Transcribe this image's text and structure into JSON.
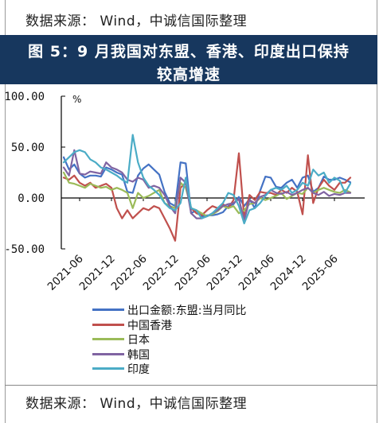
{
  "source_label": "数据来源： Wind，中诚信国际整理",
  "title_line1": "图 5：9 月我国对东盟、香港、印度出口保持",
  "title_line2": "较高增速",
  "chart_data": {
    "type": "line",
    "title": "图 5：9 月我国对东盟、香港、印度出口保持较高增速",
    "ylabel": "%",
    "ylim": [
      -50,
      100
    ],
    "yticks": [
      "-50.00",
      "0.00",
      "50.00",
      "100.00"
    ],
    "xticks": [
      "2021-06",
      "2021-12",
      "2022-06",
      "2022-12",
      "2023-06",
      "2023-12",
      "2024-06",
      "2024-12",
      "2025-06"
    ],
    "x": [
      "2021-03",
      "2021-04",
      "2021-05",
      "2021-06",
      "2021-07",
      "2021-08",
      "2021-09",
      "2021-10",
      "2021-11",
      "2021-12",
      "2022-01",
      "2022-02",
      "2022-03",
      "2022-04",
      "2022-05",
      "2022-06",
      "2022-07",
      "2022-08",
      "2022-09",
      "2022-10",
      "2022-11",
      "2022-12",
      "2023-01",
      "2023-02",
      "2023-03",
      "2023-04",
      "2023-05",
      "2023-06",
      "2023-07",
      "2023-08",
      "2023-09",
      "2023-10",
      "2023-11",
      "2023-12",
      "2024-01",
      "2024-02",
      "2024-03",
      "2024-04",
      "2024-05",
      "2024-06",
      "2024-07",
      "2024-08",
      "2024-09",
      "2024-10",
      "2024-11",
      "2024-12",
      "2025-01",
      "2025-02",
      "2025-03",
      "2025-04",
      "2025-05",
      "2025-06",
      "2025-07",
      "2025-08",
      "2025-09"
    ],
    "series": [
      {
        "name": "出口金额:东盟:当月同比",
        "color": "#4472c4",
        "values": [
          40,
          28,
          33,
          24,
          20,
          22,
          22,
          21,
          30,
          28,
          25,
          23,
          6,
          5,
          22,
          29,
          33,
          28,
          23,
          6,
          -5,
          -8,
          35,
          34,
          -15,
          -12,
          -18,
          -17,
          -17,
          -16,
          -14,
          -8,
          -6,
          1,
          -8,
          -1,
          -10,
          7,
          21,
          20,
          11,
          10,
          15,
          18,
          10,
          20,
          22,
          6,
          10,
          21,
          18,
          18,
          20,
          18,
          15.5
        ]
      },
      {
        "name": "中国香港",
        "color": "#c0504d",
        "values": [
          20,
          18,
          22,
          15,
          12,
          15,
          10,
          12,
          14,
          10,
          -10,
          -20,
          -12,
          -20,
          -15,
          -10,
          -12,
          -8,
          -10,
          -20,
          -30,
          -42,
          10,
          15,
          -10,
          -15,
          -17,
          -12,
          -8,
          -10,
          -6,
          -10,
          -2,
          44,
          -20,
          3,
          -2,
          6,
          5,
          5,
          3,
          8,
          5,
          10,
          6,
          -16,
          42,
          -5,
          10,
          18,
          12,
          8,
          15,
          15,
          20
        ]
      },
      {
        "name": "日本",
        "color": "#9bbb59",
        "values": [
          25,
          15,
          14,
          12,
          10,
          14,
          12,
          10,
          11,
          8,
          10,
          8,
          5,
          -10,
          5,
          0,
          2,
          5,
          8,
          -5,
          -8,
          -10,
          15,
          10,
          -10,
          -12,
          -15,
          -18,
          -16,
          -13,
          -8,
          -10,
          -8,
          -15,
          -12,
          -6,
          -5,
          0,
          -2,
          0,
          2,
          5,
          -1,
          2,
          5,
          4,
          10,
          5,
          8,
          10,
          8,
          6,
          5,
          8,
          5.5
        ]
      },
      {
        "name": "韩国",
        "color": "#8064a2",
        "values": [
          30,
          22,
          47,
          24,
          23,
          26,
          25,
          24,
          35,
          30,
          28,
          25,
          18,
          16,
          20,
          18,
          10,
          12,
          10,
          3,
          -8,
          -15,
          20,
          15,
          -15,
          -20,
          -20,
          -18,
          -15,
          -12,
          -8,
          -6,
          -5,
          -1,
          -22,
          -2,
          -5,
          1,
          3,
          8,
          5,
          4,
          6,
          3,
          5,
          8,
          10,
          5,
          3,
          6,
          2,
          4,
          3,
          5,
          5
        ]
      },
      {
        "name": "印度",
        "color": "#4bacc6",
        "values": [
          35,
          40,
          45,
          47,
          45,
          38,
          35,
          30,
          28,
          25,
          22,
          18,
          15,
          62,
          35,
          20,
          12,
          8,
          3,
          -5,
          -10,
          -12,
          -5,
          20,
          -10,
          -12,
          -20,
          -18,
          -15,
          -10,
          -5,
          5,
          3,
          -8,
          -25,
          -12,
          -10,
          -5,
          2,
          8,
          10,
          8,
          12,
          5,
          8,
          15,
          12,
          28,
          22,
          25,
          15,
          20,
          17,
          5,
          14.2
        ]
      }
    ]
  }
}
